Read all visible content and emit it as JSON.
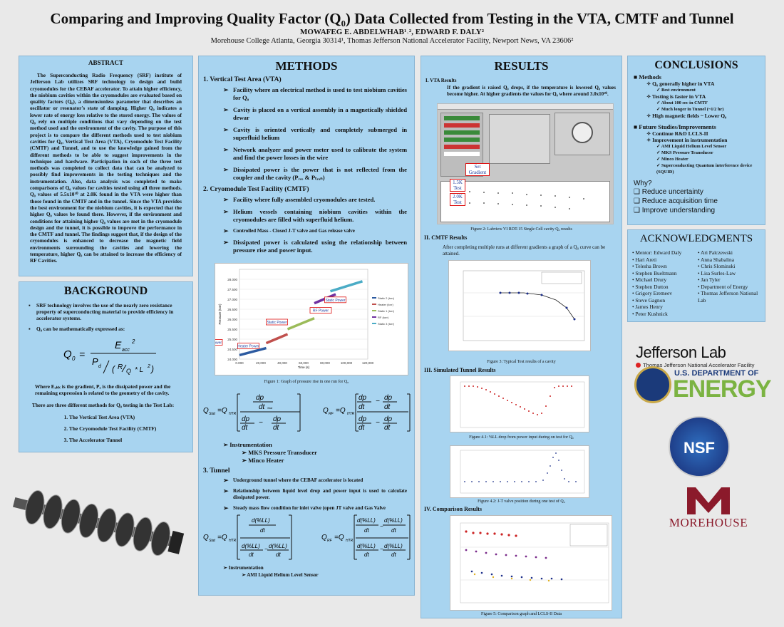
{
  "header": {
    "title": "Comparing and Improving Quality Factor (Q₀) Data Collected from Testing in the VTA, CMTF and Tunnel",
    "authors": "MOWAFEG E. ABDELWHAB¹˒², EDWARD F. DALY²",
    "affiliation": "Morehouse College Atlanta, Georgia 30314¹, Thomas Jefferson National Accelerator Facility, Newport News, VA 23606²"
  },
  "abstract": {
    "title": "ABSTRACT",
    "text": "The Superconducting Radio Frequency (SRF) institute of Jefferson Lab utilizes SRF technology to design and build cryomodules for the CEBAF accelerator. To attain higher efficiency, the niobium cavities within the cryomodules are evaluated based on quality factors (Q₀), a dimensionless parameter that describes an oscillator or resonator's state of damping. Higher Q₀ indicates a lower rate of energy loss relative to the stored energy. The values of Q₀ rely on multiple conditions that vary depending on the test method used and the environment of the cavity. The purpose of this project is to compare the different methods used to test niobium cavities for Q₀, Vertical Test Area (VTA), Cryomodule Test Facility (CMTF) and Tunnel, and to use the knowledge gained from the different methods to be able to suggest improvements in the technique and hardware. Participation in each of the three test methods was completed to collect data that can be analyzed to possibly find improvements in the testing techniques and the instrumentation. Also, data analysis was completed to make comparisons of Q₀ values for cavities tested using all three methods. Q₀ values of 5.5x10¹⁰ at 2.0K found in the VTA were higher than those found in the CMTF and in the tunnel. Since the VTA provides the best environment for the niobium cavities, it is expected that the higher Q₀ values be found there. However, if the environment and conditions for attaining higher Q₀ values are met in the cryomodule design and the tunnel, it is possible to improve the performance in the CMTF and tunnel. The findings suggest that, if the design of the cryomodules is enhanced to decrease the magnetic field environments surrounding the cavities and lowering the temperature, higher Q₀ can be attained to increase the efficiency of RF Cavities."
  },
  "background": {
    "title": "BACKGROUND",
    "bullets": [
      "SRF technology involves the use of the nearly zero resistance property of superconducting material to provide efficiency in accelerator systems.",
      "Q₀ can be mathematically expressed as:"
    ],
    "equation_note": "Where Eₐₖₖ is the gradient, Pₐ is the dissipated power and the remaining expression is related to the geometry of the cavity.",
    "methods_intro": "There are three different methods for Q₀ testing in the Test Lab:",
    "methods": [
      "The Vertical Test Area (VTA)",
      "The Cryomodule Test Facility (CMTF)",
      "The Accelerator Tunnel"
    ]
  },
  "methods": {
    "title": "METHODS",
    "vta": {
      "heading": "1.     Vertical Test Area (VTA)",
      "bullets": [
        "Facility where an electrical method is used to test niobium cavities for Q₀",
        "Cavity is placed on a vertical assembly in a magnetically shielded dewar",
        "Cavity is oriented vertically and completely submerged in superfluid helium",
        "Network analyzer and power meter used to calibrate the system and find the power losses in the wire",
        "Dissipated power is the power that is not reflected from the coupler and the cavity (Pᵣₑₒ & Pₜᵣₐₙ)"
      ]
    },
    "cmtf": {
      "heading": "2.     Cryomodule Test Facility (CMTF)",
      "bullets": [
        "Facility where fully assembled cryomodules are tested.",
        "Helium vessels containing niobium cavities within the cryomodules are filled with superfluid helium.",
        "Controlled Mass - Closed J-T valve and Gas release valve",
        "Dissipated power is calculated using the relationship between pressure rise and power input."
      ],
      "figure_caption": "Figure 1: Graph of pressure rise in one run for Q₀",
      "instrumentation": "Instrumentation",
      "instruments": [
        "MKS Pressure Transducer",
        "Minco Heater"
      ]
    },
    "tunnel": {
      "heading": "3.     Tunnel",
      "bullets": [
        "Underground tunnel where the CEBAF accelerator is located",
        "Relationship between liquid level drop and power input is used to calculate dissipated power.",
        "Steady mass flow condition for inlet valve (open JT valve and Gas Valve"
      ],
      "instrumentation": "Instrumentation",
      "instruments": [
        "AMI Liquid Helium Level Sensor"
      ]
    }
  },
  "results": {
    "title": "RESULTS",
    "vta_heading": "I.   VTA Results",
    "vta_text": "If the gradient is raised Q₀ drops, if the temperature is lowered Q₀ values become higher. At higher gradients the values for Q₀ where around 3.0x10¹⁰.",
    "labview_labels": [
      "Set Gradient",
      "1.5K Test",
      "2.0K Test"
    ],
    "fig2_caption": "Figure 2: Labview VI RDT-15 Single Cell cavity Q₀ results",
    "cmtf_heading": "II.  CMTF Results",
    "cmtf_text": "After completing multiple runs at different gradients a graph of a Q₀ curve can be attained.",
    "fig3_caption": "Figure 3: Typical Test results of a cavity",
    "tunnel_heading": "III. Simulated Tunnel Results",
    "fig41_caption": "Figure 4.1: %LL drop from power input during on test for Q₀",
    "fig42_caption": "Figure 4.2: J-T valve position during one test of Q₀",
    "comparison_heading": "IV.  Comparison Results",
    "fig5_caption": "Figure 5: Comparison graph and LCLS-II Data"
  },
  "conclusions": {
    "title": "CONCLUSIONS",
    "methods_head": "Methods",
    "methods_items": [
      {
        "text": "Q₀ generally higher in VTA",
        "level": 1
      },
      {
        "text": "Best environment",
        "level": 2
      },
      {
        "text": "Testing is faster in VTA",
        "level": 1
      },
      {
        "text": "About 100 sec in CMTF",
        "level": 2
      },
      {
        "text": "Much longer in Tunnel (~1/2 hr)",
        "level": 2
      },
      {
        "text": "High magnetic fields ~ Lower Q₀",
        "level": 1
      }
    ],
    "future_head": "Future Studies/Improvements",
    "future_items": [
      {
        "text": "Continue R&D LCLS-II",
        "level": 1
      },
      {
        "text": "Improvement in instrumentation",
        "level": 1
      },
      {
        "text": "AMI Liquid Helium Level Sensor",
        "level": 2
      },
      {
        "text": "MKS Pressure Transducer",
        "level": 2
      },
      {
        "text": "Minco Heater",
        "level": 2
      },
      {
        "text": "Superconducting Quantum interference device (SQUID)",
        "level": 2
      }
    ],
    "why": "Why?",
    "why_items": [
      "Reduce uncertainty",
      "Reduce acquisition time",
      "Improve understanding"
    ]
  },
  "acknowledgments": {
    "title": "ACKNOWLEDGMENTS",
    "col1": [
      "Mentor: Edward Daly",
      "Hari Areti",
      "Telesha Brown",
      "Stephen Bueltmann",
      "Michael Drury",
      "Stephen Dutton",
      "Grigory Eremeev",
      "Steve Gagnon",
      "James Henry",
      "Peter Kushnick"
    ],
    "col2": [
      "Ari Palczewski",
      "Anna Shabalina",
      "Chris Slominski",
      "Lisa Surles-Law",
      "Jan Tyler",
      "Department of Energy",
      "Thomas Jefferson National Lab"
    ]
  },
  "logos": {
    "jlab": "Jefferson Lab",
    "jlab_sub": "Thomas Jefferson National Accelerator Facility",
    "doe_top": "U.S. DEPARTMENT OF",
    "doe_main": "ENERGY",
    "nsf": "NSF",
    "morehouse": "MOREHOUSE"
  },
  "colors": {
    "panel": "#a8d4f0",
    "title_red": "#cc1f1f",
    "energy_green": "#7bb342",
    "morehouse_maroon": "#8b1a2b"
  },
  "chart_data": [
    {
      "type": "line",
      "title": "",
      "xlabel": "Time (s)",
      "ylabel": "Pressure (torr)",
      "ylim": [
        24,
        28.5
      ],
      "xlim": [
        0,
        120000
      ],
      "series": [
        {
          "name": "Static 2 (torr)",
          "x": [
            0,
            25000
          ],
          "y": [
            24.2,
            24.55
          ]
        },
        {
          "name": "Heater (torr)",
          "x": [
            25000,
            45000
          ],
          "y": [
            24.8,
            25.25
          ]
        },
        {
          "name": "Static 1 (torr)",
          "x": [
            45000,
            70000
          ],
          "y": [
            25.5,
            26.05
          ]
        },
        {
          "name": "RF (torr)",
          "x": [
            70000,
            90000
          ],
          "y": [
            26.8,
            27.25
          ]
        },
        {
          "name": "Static 3 (torr)",
          "x": [
            85000,
            115000
          ],
          "y": [
            27.4,
            27.9
          ]
        }
      ],
      "annotations": [
        "Static Power",
        "RF Power",
        "Static Power",
        "Heater Power",
        "Static Power"
      ],
      "tick_labels_y": [
        "24.000",
        "24.500",
        "25.000",
        "25.500",
        "26.000",
        "26.500",
        "27.000",
        "27.500",
        "28.000"
      ],
      "tick_labels_x": [
        "0.000",
        "20,000",
        "40,000",
        "60,000",
        "80,000",
        "100,000",
        "120,000"
      ]
    }
  ]
}
